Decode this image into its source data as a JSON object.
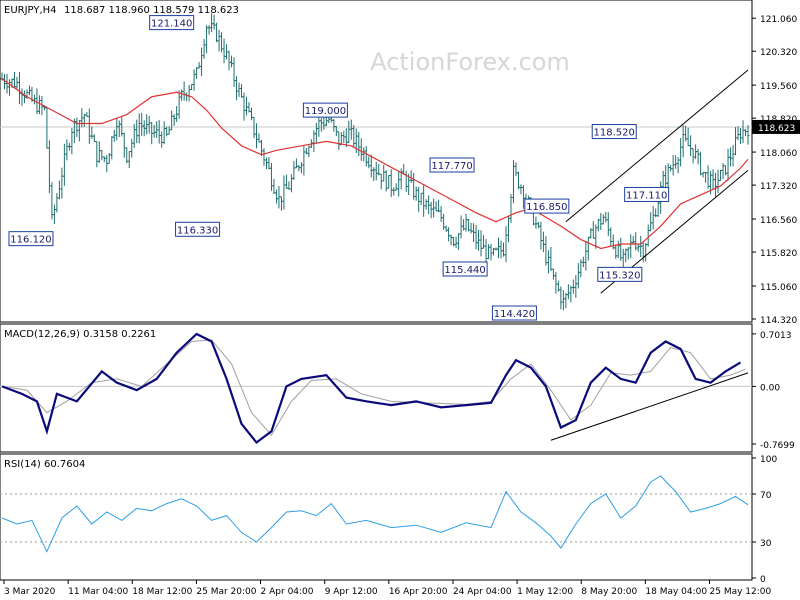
{
  "watermark": "ActionForex.com",
  "colors": {
    "background": "#ffffff",
    "price_bars": "#1f6f6f",
    "sma": "#e03131",
    "macd_line": "#0a0a7a",
    "signal_line": "#a0a0a0",
    "rsi_line": "#2e9fe6",
    "trendline": "#000000",
    "watermark": "#d8d8d8"
  },
  "chart_data": [
    {
      "type": "ohlc",
      "title": "EURJPY,H4",
      "ohlc_readout": "118.687 118.960 118.579 118.623",
      "last_price": "118.623",
      "ylim": [
        114.32,
        121.4
      ],
      "y_ticks": [
        "121.060",
        "120.320",
        "119.560",
        "118.820",
        "118.060",
        "117.320",
        "116.560",
        "115.820",
        "115.060",
        "114.320"
      ],
      "x_ticks": [
        "3 Mar 2020",
        "11 Mar 04:00",
        "18 Mar 12:00",
        "25 Mar 20:00",
        "2 Apr 04:00",
        "9 Apr 12:00",
        "16 Apr 20:00",
        "24 Apr 04:00",
        "1 May 12:00",
        "8 May 20:00",
        "18 May 04:00",
        "25 May 12:00"
      ],
      "close_path": [
        [
          0,
          119.7
        ],
        [
          6,
          119.6
        ],
        [
          12,
          119.2
        ],
        [
          17,
          119.0
        ],
        [
          20,
          116.5
        ],
        [
          24,
          117.6
        ],
        [
          28,
          118.6
        ],
        [
          33,
          118.9
        ],
        [
          38,
          118.0
        ],
        [
          42,
          117.9
        ],
        [
          46,
          118.8
        ],
        [
          50,
          118.0
        ],
        [
          55,
          118.7
        ],
        [
          60,
          118.5
        ],
        [
          66,
          118.4
        ],
        [
          72,
          119.3
        ],
        [
          78,
          119.8
        ],
        [
          82,
          120.9
        ],
        [
          86,
          120.7
        ],
        [
          90,
          120.2
        ],
        [
          95,
          119.4
        ],
        [
          100,
          118.7
        ],
        [
          106,
          117.8
        ],
        [
          111,
          117.0
        ],
        [
          115,
          117.3
        ],
        [
          119,
          117.8
        ],
        [
          123,
          118.3
        ],
        [
          127,
          118.7
        ],
        [
          131,
          118.8
        ],
        [
          135,
          118.3
        ],
        [
          139,
          118.5
        ],
        [
          143,
          118.2
        ],
        [
          147,
          117.9
        ],
        [
          151,
          117.6
        ],
        [
          156,
          117.3
        ],
        [
          161,
          117.5
        ],
        [
          166,
          117.1
        ],
        [
          171,
          116.8
        ],
        [
          176,
          116.6
        ],
        [
          181,
          116.1
        ],
        [
          186,
          116.4
        ],
        [
          191,
          116.0
        ],
        [
          196,
          115.7
        ],
        [
          201,
          115.9
        ],
        [
          205,
          117.6
        ],
        [
          209,
          117.2
        ],
        [
          213,
          116.6
        ],
        [
          217,
          115.9
        ],
        [
          221,
          115.2
        ],
        [
          225,
          114.7
        ],
        [
          229,
          115.1
        ],
        [
          233,
          115.7
        ],
        [
          237,
          116.3
        ],
        [
          241,
          116.6
        ],
        [
          245,
          116.0
        ],
        [
          249,
          115.6
        ],
        [
          253,
          116.1
        ],
        [
          257,
          115.9
        ],
        [
          261,
          116.6
        ],
        [
          265,
          117.4
        ],
        [
          269,
          117.8
        ],
        [
          273,
          118.3
        ],
        [
          277,
          118.1
        ],
        [
          281,
          117.6
        ],
        [
          285,
          117.3
        ],
        [
          289,
          117.6
        ],
        [
          293,
          118.1
        ],
        [
          296,
          118.5
        ],
        [
          299,
          118.6
        ]
      ],
      "sma_path": [
        [
          0,
          119.7
        ],
        [
          10,
          119.3
        ],
        [
          20,
          119.0
        ],
        [
          30,
          118.7
        ],
        [
          40,
          118.7
        ],
        [
          50,
          118.9
        ],
        [
          60,
          119.3
        ],
        [
          70,
          119.4
        ],
        [
          76,
          119.3
        ],
        [
          82,
          119.0
        ],
        [
          88,
          118.6
        ],
        [
          96,
          118.2
        ],
        [
          104,
          118.0
        ],
        [
          110,
          118.1
        ],
        [
          120,
          118.2
        ],
        [
          130,
          118.3
        ],
        [
          140,
          118.2
        ],
        [
          150,
          117.9
        ],
        [
          160,
          117.6
        ],
        [
          170,
          117.3
        ],
        [
          180,
          117.0
        ],
        [
          190,
          116.7
        ],
        [
          198,
          116.5
        ],
        [
          206,
          116.7
        ],
        [
          212,
          116.8
        ],
        [
          218,
          116.6
        ],
        [
          224,
          116.4
        ],
        [
          232,
          116.1
        ],
        [
          240,
          115.9
        ],
        [
          248,
          116.0
        ],
        [
          256,
          116.0
        ],
        [
          264,
          116.4
        ],
        [
          272,
          116.9
        ],
        [
          280,
          117.1
        ],
        [
          288,
          117.3
        ],
        [
          296,
          117.7
        ],
        [
          299,
          117.9
        ]
      ],
      "channel": {
        "upper": [
          [
            226,
            116.5
          ],
          [
            299,
            119.9
          ]
        ],
        "lower": [
          [
            240,
            114.9
          ],
          [
            299,
            117.65
          ]
        ]
      },
      "annotations": [
        {
          "text": "121.140",
          "x": 68,
          "y": 121.14,
          "pos": "below"
        },
        {
          "text": "119.000",
          "x": 120,
          "y": 119.0,
          "pos": "right"
        },
        {
          "text": "117.770",
          "x": 190,
          "y": 117.77,
          "pos": "left"
        },
        {
          "text": "116.850",
          "x": 228,
          "y": 116.85,
          "pos": "left"
        },
        {
          "text": "118.520",
          "x": 255,
          "y": 118.52,
          "pos": "left"
        },
        {
          "text": "117.110",
          "x": 268,
          "y": 117.11,
          "pos": "left"
        },
        {
          "text": "115.320",
          "x": 238,
          "y": 115.32,
          "pos": "right"
        },
        {
          "text": "115.440",
          "x": 176,
          "y": 115.44,
          "pos": "right"
        },
        {
          "text": "116.330",
          "x": 88,
          "y": 116.33,
          "pos": "left"
        },
        {
          "text": "116.120",
          "x": 2,
          "y": 116.12,
          "pos": "right"
        },
        {
          "text": "114.420",
          "x": 215,
          "y": 114.42,
          "pos": "left"
        }
      ]
    },
    {
      "type": "line",
      "title": "MACD(12,26,9) 0.3158 0.2261",
      "ylim": [
        -0.85,
        0.78
      ],
      "y_ticks": [
        "0.7013",
        "0.00",
        "-0.7699"
      ],
      "y_tick_values": [
        0.7013,
        0.0,
        -0.7699
      ],
      "macd_path": [
        [
          0,
          0.0
        ],
        [
          8,
          -0.1
        ],
        [
          14,
          -0.2
        ],
        [
          18,
          -0.6
        ],
        [
          22,
          -0.1
        ],
        [
          30,
          -0.2
        ],
        [
          40,
          0.2
        ],
        [
          46,
          0.05
        ],
        [
          54,
          -0.05
        ],
        [
          62,
          0.1
        ],
        [
          70,
          0.45
        ],
        [
          78,
          0.7
        ],
        [
          84,
          0.6
        ],
        [
          90,
          0.1
        ],
        [
          96,
          -0.5
        ],
        [
          102,
          -0.75
        ],
        [
          108,
          -0.6
        ],
        [
          114,
          0.0
        ],
        [
          120,
          0.1
        ],
        [
          130,
          0.15
        ],
        [
          138,
          -0.15
        ],
        [
          146,
          -0.2
        ],
        [
          156,
          -0.25
        ],
        [
          166,
          -0.2
        ],
        [
          176,
          -0.28
        ],
        [
          186,
          -0.25
        ],
        [
          196,
          -0.22
        ],
        [
          202,
          0.15
        ],
        [
          206,
          0.35
        ],
        [
          212,
          0.25
        ],
        [
          218,
          0.0
        ],
        [
          224,
          -0.55
        ],
        [
          230,
          -0.45
        ],
        [
          236,
          0.05
        ],
        [
          242,
          0.25
        ],
        [
          248,
          0.1
        ],
        [
          254,
          0.05
        ],
        [
          260,
          0.45
        ],
        [
          266,
          0.6
        ],
        [
          272,
          0.5
        ],
        [
          278,
          0.1
        ],
        [
          284,
          0.05
        ],
        [
          290,
          0.2
        ],
        [
          296,
          0.32
        ]
      ],
      "signal_path": [
        [
          0,
          0.0
        ],
        [
          10,
          -0.05
        ],
        [
          18,
          -0.35
        ],
        [
          26,
          -0.2
        ],
        [
          36,
          0.05
        ],
        [
          46,
          0.1
        ],
        [
          56,
          0.0
        ],
        [
          66,
          0.3
        ],
        [
          76,
          0.6
        ],
        [
          84,
          0.62
        ],
        [
          92,
          0.3
        ],
        [
          100,
          -0.35
        ],
        [
          108,
          -0.65
        ],
        [
          116,
          -0.2
        ],
        [
          124,
          0.08
        ],
        [
          134,
          0.1
        ],
        [
          144,
          -0.1
        ],
        [
          156,
          -0.2
        ],
        [
          170,
          -0.22
        ],
        [
          186,
          -0.24
        ],
        [
          196,
          -0.2
        ],
        [
          204,
          0.1
        ],
        [
          212,
          0.3
        ],
        [
          220,
          -0.05
        ],
        [
          228,
          -0.45
        ],
        [
          236,
          -0.25
        ],
        [
          244,
          0.18
        ],
        [
          252,
          0.15
        ],
        [
          260,
          0.2
        ],
        [
          268,
          0.52
        ],
        [
          276,
          0.45
        ],
        [
          284,
          0.1
        ],
        [
          292,
          0.15
        ],
        [
          298,
          0.23
        ]
      ],
      "trendline": [
        [
          220,
          -0.72
        ],
        [
          299,
          0.18
        ]
      ]
    },
    {
      "type": "line",
      "title": "RSI(14) 60.7604",
      "ylim": [
        0,
        100
      ],
      "y_ticks": [
        "100",
        "70",
        "30",
        "0"
      ],
      "y_tick_values": [
        100,
        70,
        30,
        0
      ],
      "levels": [
        70,
        30
      ],
      "rsi_path": [
        [
          0,
          50
        ],
        [
          6,
          45
        ],
        [
          12,
          48
        ],
        [
          18,
          22
        ],
        [
          24,
          50
        ],
        [
          30,
          60
        ],
        [
          36,
          45
        ],
        [
          42,
          55
        ],
        [
          48,
          48
        ],
        [
          54,
          58
        ],
        [
          60,
          56
        ],
        [
          66,
          62
        ],
        [
          72,
          66
        ],
        [
          78,
          60
        ],
        [
          84,
          48
        ],
        [
          90,
          52
        ],
        [
          96,
          38
        ],
        [
          102,
          30
        ],
        [
          108,
          42
        ],
        [
          114,
          55
        ],
        [
          120,
          56
        ],
        [
          126,
          52
        ],
        [
          132,
          62
        ],
        [
          138,
          45
        ],
        [
          146,
          48
        ],
        [
          156,
          42
        ],
        [
          166,
          44
        ],
        [
          176,
          38
        ],
        [
          186,
          46
        ],
        [
          196,
          42
        ],
        [
          202,
          72
        ],
        [
          208,
          55
        ],
        [
          214,
          46
        ],
        [
          220,
          35
        ],
        [
          224,
          25
        ],
        [
          230,
          45
        ],
        [
          236,
          62
        ],
        [
          242,
          70
        ],
        [
          248,
          50
        ],
        [
          254,
          60
        ],
        [
          260,
          80
        ],
        [
          264,
          85
        ],
        [
          270,
          72
        ],
        [
          276,
          55
        ],
        [
          282,
          58
        ],
        [
          288,
          62
        ],
        [
          294,
          68
        ],
        [
          299,
          61
        ]
      ]
    }
  ]
}
